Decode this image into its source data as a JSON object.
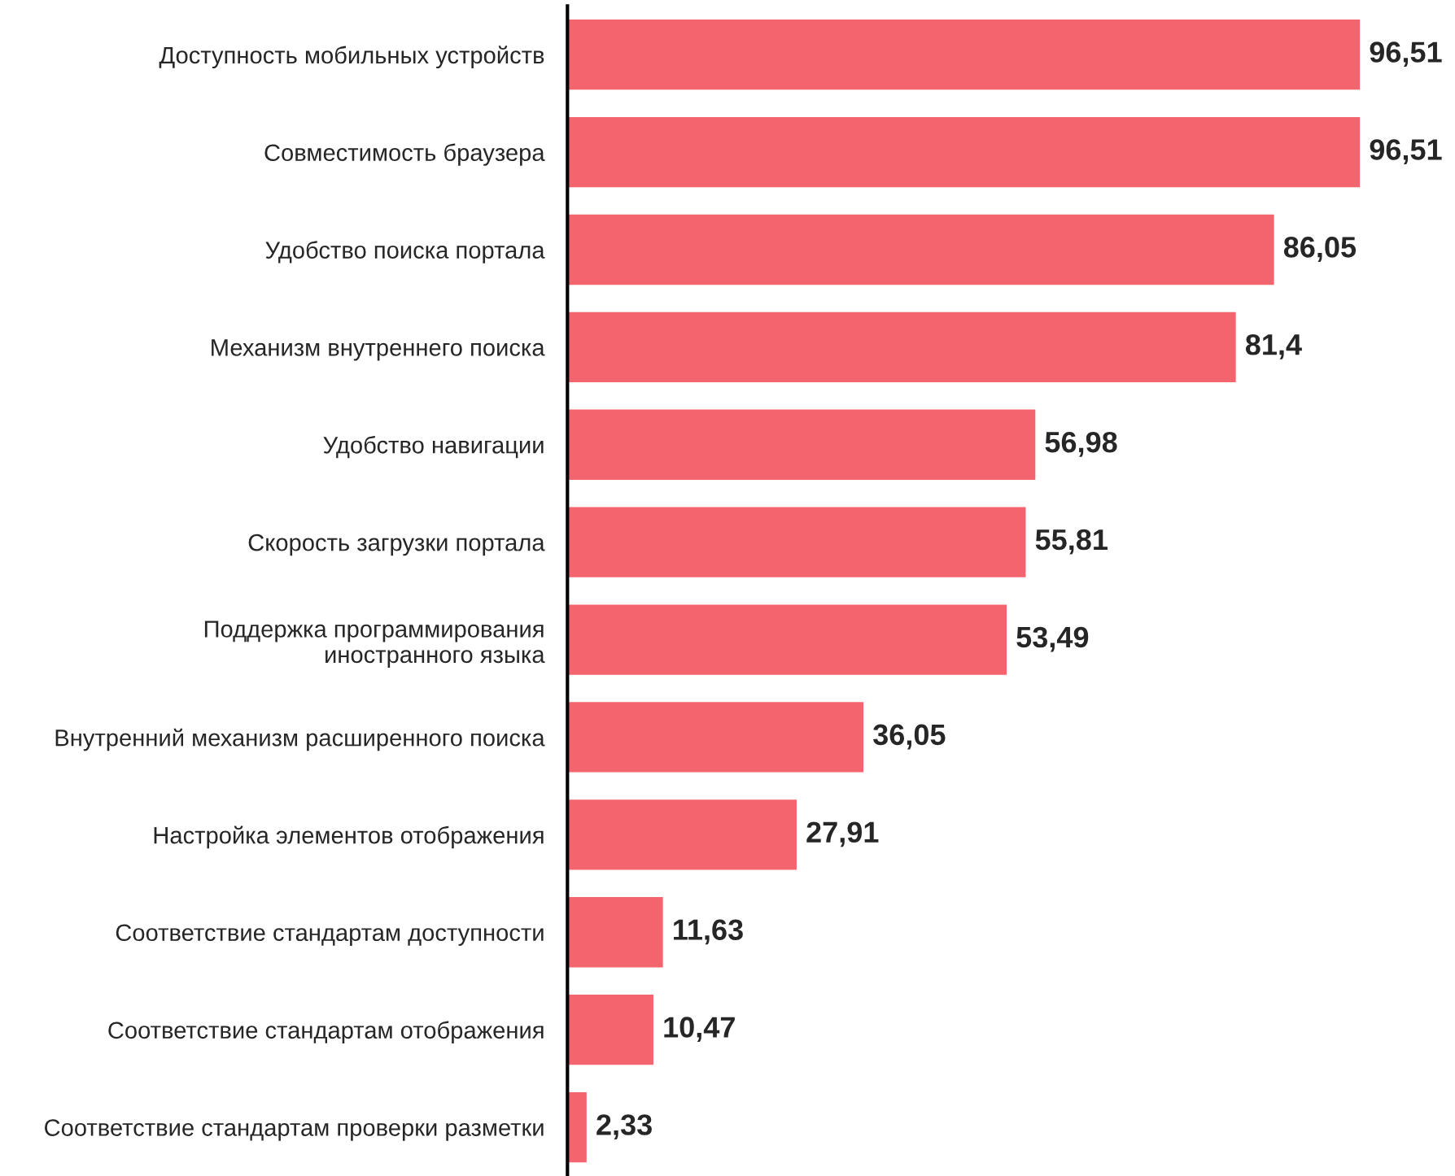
{
  "chart_data": {
    "type": "bar",
    "orientation": "horizontal",
    "data_labels": true,
    "color": "#f4646f",
    "categories": [
      "Доступность мобильных устройств",
      "Совместимость браузера",
      "Удобство поиска портала",
      "Механизм внутреннего поиска",
      "Удобство навигации",
      "Скорость загрузки портала",
      "Поддержка программирования\nиностранного языка",
      "Внутренний механизм расширенного поиска",
      "Настройка элементов отображения",
      "Соответствие стандартам доступности",
      "Соответствие стандартам отображения",
      "Соответствие стандартам проверки разметки"
    ],
    "values": [
      96.51,
      96.51,
      86.05,
      81.4,
      56.98,
      55.81,
      53.49,
      36.05,
      27.91,
      11.63,
      10.47,
      2.33
    ],
    "value_labels": [
      "96,51",
      "96,51",
      "86,05",
      "81,4",
      "56,98",
      "55,81",
      "53,49",
      "36,05",
      "27,91",
      "11,63",
      "10,47",
      "2,33"
    ]
  }
}
